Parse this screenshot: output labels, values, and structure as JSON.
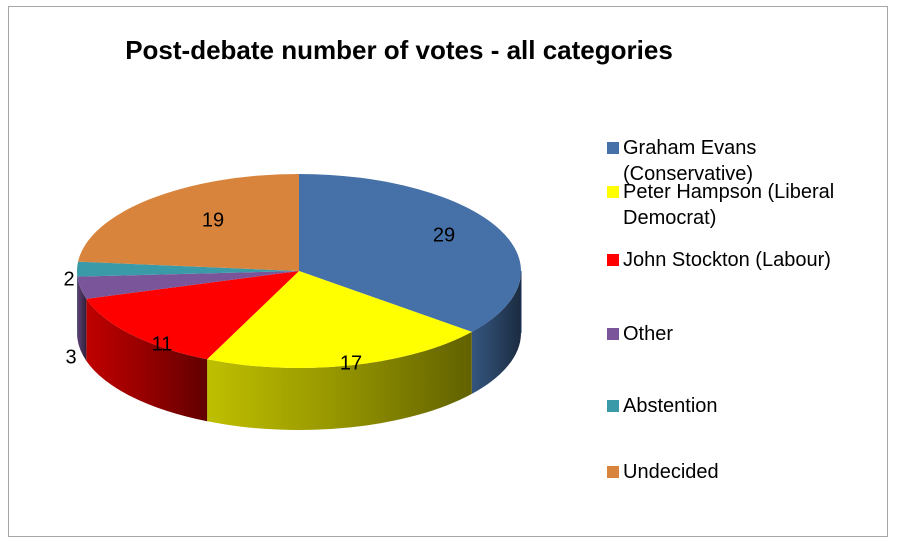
{
  "chart_data": {
    "type": "pie",
    "title": "Post-debate number of votes - all categories",
    "three_d": true,
    "legend_position": "right",
    "slices": [
      {
        "label": "Graham Evans (Conservative)",
        "value": 29,
        "value_label": "29",
        "color": "#4671a8"
      },
      {
        "label": "Peter Hampson (Liberal Democrat)",
        "value": 17,
        "value_label": "17",
        "color": "#ffff00"
      },
      {
        "label": "John Stockton (Labour)",
        "value": 11,
        "value_label": "11",
        "color": "#ff0000"
      },
      {
        "label": "Other",
        "value": 3,
        "value_label": "3",
        "color": "#7b559a"
      },
      {
        "label": "Abstention",
        "value": 2,
        "value_label": "2",
        "color": "#3b9aa8"
      },
      {
        "label": "Undecided",
        "value": 19,
        "value_label": "19",
        "color": "#d9843d"
      }
    ]
  }
}
